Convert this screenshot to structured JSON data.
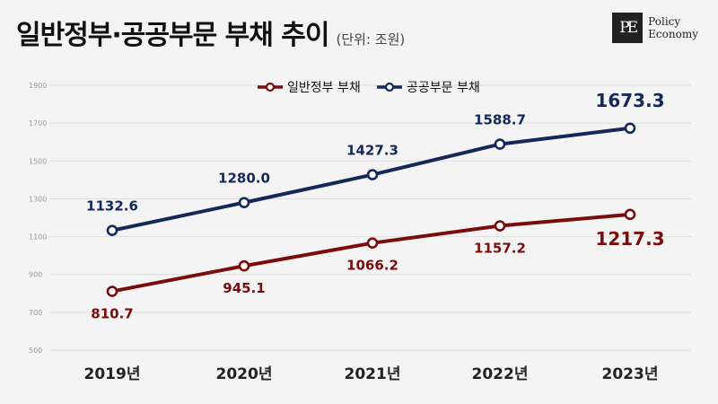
{
  "header": {
    "title": "일반정부·공공부문 부채 추이",
    "unit": "(단위: 조원)"
  },
  "logo": {
    "mark": "PE",
    "line1": "Policy",
    "line2": "Economy"
  },
  "colors": {
    "general": "#7a0c0c",
    "public": "#15285a",
    "grid": "#dddddd",
    "tick": "#999999"
  },
  "chart_data": {
    "type": "line",
    "categories": [
      "2019년",
      "2020년",
      "2021년",
      "2022년",
      "2023년"
    ],
    "series": [
      {
        "name": "일반정부 부채",
        "values": [
          810.7,
          945.1,
          1066.2,
          1157.2,
          1217.3
        ],
        "labels": [
          "810.7",
          "945.1",
          "1066.2",
          "1157.2",
          "1217.3"
        ],
        "color": "#7a0c0c"
      },
      {
        "name": "공공부문 부채",
        "values": [
          1132.6,
          1280.0,
          1427.3,
          1588.7,
          1673.3
        ],
        "labels": [
          "1132.6",
          "1280.0",
          "1427.3",
          "1588.7",
          "1673.3"
        ],
        "color": "#15285a"
      }
    ],
    "yticks": [
      500,
      700,
      900,
      1100,
      1300,
      1500,
      1700,
      1900
    ],
    "ylim": [
      500,
      1900
    ],
    "legend": "top-center",
    "grid": true
  }
}
